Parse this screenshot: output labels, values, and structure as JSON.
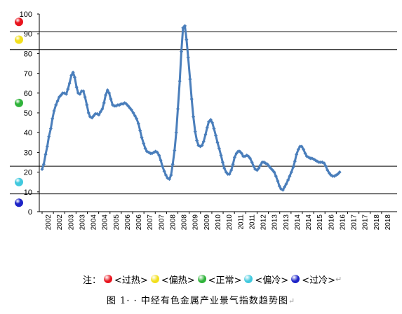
{
  "chart_data": {
    "type": "line",
    "title": "",
    "xlabel": "",
    "ylabel": "",
    "ylim": [
      0,
      100
    ],
    "yticks": [
      0,
      10,
      20,
      30,
      40,
      50,
      60,
      70,
      80,
      90,
      100
    ],
    "x_tick_labels": [
      "2002",
      "2002",
      "2003",
      "2003",
      "2004",
      "2004",
      "2005",
      "2006",
      "2006",
      "2007",
      "2007",
      "2008",
      "2008",
      "2009",
      "2009",
      "2010",
      "2010",
      "2011",
      "2011",
      "2012",
      "2013",
      "2013",
      "2014",
      "2014",
      "2015",
      "2016",
      "2016",
      "2017",
      "2017",
      "2018",
      "2018"
    ],
    "x_range": [
      2002.0,
      2019.0
    ],
    "zone_lines": [
      9,
      23,
      82,
      91
    ],
    "zones": [
      {
        "name": "过热",
        "color": "#e8141d",
        "y": 96
      },
      {
        "name": "偏热",
        "color": "#f2df1c",
        "y": 87
      },
      {
        "name": "正常",
        "color": "#2fb33a",
        "y": 55
      },
      {
        "name": "偏冷",
        "color": "#41c9de",
        "y": 15
      },
      {
        "name": "过冷",
        "color": "#1d23c7",
        "y": 4.5
      }
    ],
    "series": [
      {
        "color": "#4a7ebb",
        "points": [
          [
            2002.0,
            21.5
          ],
          [
            2002.08,
            24
          ],
          [
            2002.17,
            29
          ],
          [
            2002.25,
            33
          ],
          [
            2002.33,
            38
          ],
          [
            2002.42,
            42
          ],
          [
            2002.5,
            47
          ],
          [
            2002.58,
            51
          ],
          [
            2002.67,
            54
          ],
          [
            2002.75,
            56
          ],
          [
            2002.83,
            58
          ],
          [
            2002.92,
            59
          ],
          [
            2003.0,
            60
          ],
          [
            2003.08,
            60
          ],
          [
            2003.17,
            59.5
          ],
          [
            2003.25,
            62
          ],
          [
            2003.33,
            65
          ],
          [
            2003.42,
            69
          ],
          [
            2003.5,
            70.5
          ],
          [
            2003.58,
            68
          ],
          [
            2003.67,
            63
          ],
          [
            2003.75,
            60
          ],
          [
            2003.83,
            59.5
          ],
          [
            2003.92,
            61
          ],
          [
            2004.0,
            61
          ],
          [
            2004.08,
            58
          ],
          [
            2004.17,
            54
          ],
          [
            2004.25,
            50
          ],
          [
            2004.33,
            48
          ],
          [
            2004.42,
            47.5
          ],
          [
            2004.5,
            48.5
          ],
          [
            2004.58,
            49.5
          ],
          [
            2004.67,
            49.5
          ],
          [
            2004.75,
            49
          ],
          [
            2004.83,
            50.5
          ],
          [
            2004.92,
            52
          ],
          [
            2005.0,
            55
          ],
          [
            2005.08,
            59
          ],
          [
            2005.17,
            61.5
          ],
          [
            2005.25,
            60
          ],
          [
            2005.33,
            57
          ],
          [
            2005.42,
            54
          ],
          [
            2005.5,
            53.5
          ],
          [
            2005.58,
            53.5
          ],
          [
            2005.67,
            54
          ],
          [
            2005.75,
            54
          ],
          [
            2005.83,
            54.5
          ],
          [
            2005.92,
            54.5
          ],
          [
            2006.0,
            55
          ],
          [
            2006.08,
            54.5
          ],
          [
            2006.17,
            53.5
          ],
          [
            2006.25,
            52.5
          ],
          [
            2006.33,
            51.5
          ],
          [
            2006.42,
            50
          ],
          [
            2006.5,
            48.5
          ],
          [
            2006.58,
            47
          ],
          [
            2006.67,
            44.5
          ],
          [
            2006.75,
            41
          ],
          [
            2006.83,
            37.5
          ],
          [
            2006.92,
            34.5
          ],
          [
            2007.0,
            32
          ],
          [
            2007.08,
            30.5
          ],
          [
            2007.17,
            30
          ],
          [
            2007.25,
            29.5
          ],
          [
            2007.33,
            29.5
          ],
          [
            2007.42,
            30
          ],
          [
            2007.5,
            30.5
          ],
          [
            2007.58,
            30
          ],
          [
            2007.67,
            28.5
          ],
          [
            2007.75,
            26
          ],
          [
            2007.83,
            23
          ],
          [
            2007.92,
            20.5
          ],
          [
            2008.0,
            18.5
          ],
          [
            2008.08,
            17
          ],
          [
            2008.17,
            16.5
          ],
          [
            2008.25,
            18.5
          ],
          [
            2008.33,
            24
          ],
          [
            2008.42,
            31
          ],
          [
            2008.5,
            40
          ],
          [
            2008.58,
            52
          ],
          [
            2008.67,
            66
          ],
          [
            2008.75,
            81
          ],
          [
            2008.83,
            93
          ],
          [
            2008.92,
            94
          ],
          [
            2009.0,
            87
          ],
          [
            2009.08,
            78
          ],
          [
            2009.17,
            67
          ],
          [
            2009.25,
            57
          ],
          [
            2009.33,
            48
          ],
          [
            2009.42,
            40.5
          ],
          [
            2009.5,
            36
          ],
          [
            2009.58,
            33.5
          ],
          [
            2009.67,
            33
          ],
          [
            2009.75,
            33.5
          ],
          [
            2009.83,
            35.5
          ],
          [
            2009.92,
            39
          ],
          [
            2010.0,
            42.5
          ],
          [
            2010.08,
            45.5
          ],
          [
            2010.17,
            46.5
          ],
          [
            2010.25,
            45
          ],
          [
            2010.33,
            42
          ],
          [
            2010.42,
            38.5
          ],
          [
            2010.5,
            35
          ],
          [
            2010.58,
            32
          ],
          [
            2010.67,
            28.5
          ],
          [
            2010.75,
            25
          ],
          [
            2010.83,
            22
          ],
          [
            2010.92,
            20
          ],
          [
            2011.0,
            19
          ],
          [
            2011.08,
            19
          ],
          [
            2011.17,
            21
          ],
          [
            2011.25,
            24
          ],
          [
            2011.33,
            27.5
          ],
          [
            2011.42,
            29.5
          ],
          [
            2011.5,
            30.5
          ],
          [
            2011.58,
            30.5
          ],
          [
            2011.67,
            29.5
          ],
          [
            2011.75,
            28
          ],
          [
            2011.83,
            28
          ],
          [
            2011.92,
            28.5
          ],
          [
            2012.0,
            28
          ],
          [
            2012.08,
            27
          ],
          [
            2012.17,
            25
          ],
          [
            2012.25,
            23
          ],
          [
            2012.33,
            21.5
          ],
          [
            2012.42,
            21
          ],
          [
            2012.5,
            22
          ],
          [
            2012.58,
            23.5
          ],
          [
            2012.67,
            25
          ],
          [
            2012.75,
            25
          ],
          [
            2012.83,
            24.5
          ],
          [
            2012.92,
            24
          ],
          [
            2013.0,
            23
          ],
          [
            2013.08,
            22
          ],
          [
            2013.17,
            21
          ],
          [
            2013.25,
            20
          ],
          [
            2013.33,
            18
          ],
          [
            2013.42,
            15.5
          ],
          [
            2013.5,
            13
          ],
          [
            2013.58,
            11.5
          ],
          [
            2013.67,
            11
          ],
          [
            2013.75,
            12.5
          ],
          [
            2013.83,
            14
          ],
          [
            2013.92,
            16
          ],
          [
            2014.0,
            18
          ],
          [
            2014.08,
            20
          ],
          [
            2014.17,
            22.5
          ],
          [
            2014.25,
            25.5
          ],
          [
            2014.33,
            29
          ],
          [
            2014.42,
            31.5
          ],
          [
            2014.5,
            33
          ],
          [
            2014.58,
            33
          ],
          [
            2014.67,
            31.5
          ],
          [
            2014.75,
            29.5
          ],
          [
            2014.83,
            28
          ],
          [
            2014.92,
            27.5
          ],
          [
            2015.0,
            27
          ],
          [
            2015.08,
            27
          ],
          [
            2015.17,
            26.5
          ],
          [
            2015.25,
            26
          ],
          [
            2015.33,
            25.5
          ],
          [
            2015.42,
            25
          ],
          [
            2015.5,
            25
          ],
          [
            2015.58,
            25
          ],
          [
            2015.67,
            24.5
          ],
          [
            2015.75,
            23
          ],
          [
            2015.83,
            21
          ],
          [
            2015.92,
            19.5
          ],
          [
            2016.0,
            18.5
          ],
          [
            2016.08,
            18
          ],
          [
            2016.17,
            18
          ],
          [
            2016.25,
            18.5
          ],
          [
            2016.33,
            19
          ],
          [
            2016.42,
            20
          ]
        ]
      }
    ]
  },
  "legend": {
    "prefix": "注：",
    "items": [
      {
        "label": "<过热>",
        "color": "#e8141d"
      },
      {
        "label": "<偏热>",
        "color": "#f2df1c"
      },
      {
        "label": "<正常>",
        "color": "#2fb33a"
      },
      {
        "label": "<偏冷>",
        "color": "#41c9de"
      },
      {
        "label": "<过冷>",
        "color": "#1d23c7"
      }
    ],
    "end_mark": "↵"
  },
  "caption": {
    "text": "图 1· · 中经有色金属产业景气指数趋势图",
    "end_mark": "↵"
  }
}
